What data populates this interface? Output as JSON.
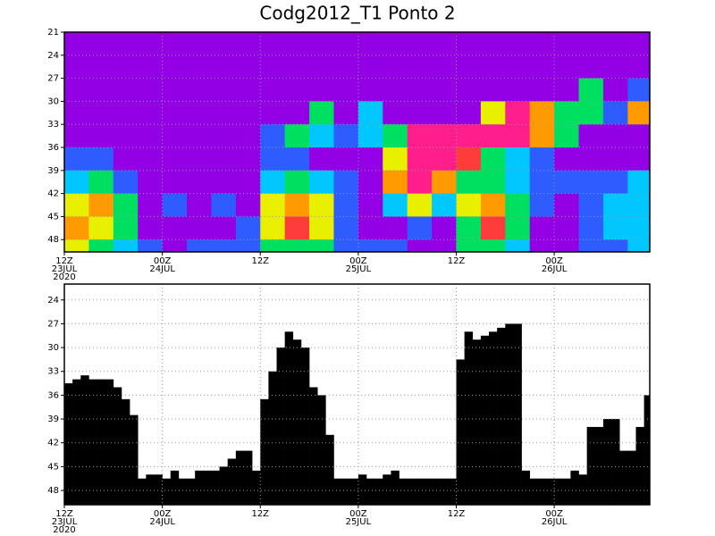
{
  "chart_data": [
    {
      "type": "heatmap",
      "title": "Codg2012_T1 Ponto 2",
      "colors": [
        "#9400e6",
        "#2e5cff",
        "#00c8ff",
        "#00e060",
        "#e8f000",
        "#ff9a00",
        "#ff3c3c",
        "#ff1e8c"
      ],
      "x": [
        0,
        3,
        6,
        9,
        12,
        15,
        18,
        21,
        24,
        27,
        30,
        33,
        36,
        39,
        42,
        45,
        48,
        51,
        54,
        57,
        60,
        63,
        66,
        69
      ],
      "y": [
        21,
        24,
        27,
        30,
        33,
        36,
        39,
        42,
        45,
        48
      ],
      "z": [
        [
          0,
          0,
          0,
          0,
          0,
          0,
          0,
          0,
          0,
          0,
          0,
          0,
          0,
          0,
          0,
          0,
          0,
          0,
          0,
          0,
          0,
          0,
          0,
          0
        ],
        [
          0,
          0,
          0,
          0,
          0,
          0,
          0,
          0,
          0,
          0,
          0,
          0,
          0,
          0,
          0,
          0,
          0,
          0,
          0,
          0,
          0,
          0,
          0,
          0
        ],
        [
          0,
          0,
          0,
          0,
          0,
          0,
          0,
          0,
          0,
          0,
          0,
          0,
          0,
          0,
          0,
          0,
          0,
          0,
          0,
          0,
          0,
          3,
          0,
          1
        ],
        [
          0,
          0,
          0,
          0,
          0,
          0,
          0,
          0,
          0,
          0,
          3,
          0,
          2,
          0,
          0,
          0,
          0,
          4,
          7,
          5,
          3,
          3,
          1,
          5
        ],
        [
          0,
          0,
          0,
          0,
          0,
          0,
          0,
          0,
          1,
          3,
          2,
          1,
          2,
          3,
          7,
          7,
          7,
          7,
          7,
          5,
          3,
          0,
          0,
          0
        ],
        [
          1,
          1,
          0,
          0,
          0,
          0,
          0,
          0,
          1,
          1,
          0,
          0,
          0,
          4,
          7,
          7,
          6,
          3,
          2,
          1,
          0,
          0,
          0,
          0
        ],
        [
          2,
          3,
          1,
          0,
          0,
          0,
          0,
          0,
          2,
          3,
          2,
          1,
          0,
          5,
          7,
          5,
          3,
          3,
          2,
          1,
          1,
          1,
          1,
          2
        ],
        [
          4,
          5,
          3,
          0,
          1,
          0,
          1,
          0,
          4,
          5,
          4,
          1,
          0,
          2,
          4,
          2,
          4,
          5,
          3,
          1,
          0,
          1,
          2,
          2
        ],
        [
          5,
          4,
          3,
          0,
          0,
          0,
          0,
          1,
          4,
          6,
          4,
          1,
          0,
          0,
          1,
          0,
          3,
          6,
          3,
          0,
          0,
          1,
          2,
          2
        ],
        [
          4,
          3,
          2,
          1,
          0,
          1,
          1,
          1,
          3,
          3,
          3,
          1,
          1,
          1,
          0,
          0,
          3,
          3,
          2,
          0,
          0,
          1,
          1,
          2
        ]
      ],
      "xlim": [
        0,
        71.7
      ],
      "ylim": [
        21,
        49.6
      ],
      "yticks": [
        21,
        24,
        27,
        30,
        33,
        36,
        39,
        42,
        45,
        48
      ],
      "xticks": [
        {
          "value": 0,
          "label": "12Z",
          "date": "23JUL"
        },
        {
          "value": 12,
          "label": "00Z",
          "date": "24JUL"
        },
        {
          "value": 24,
          "label": "12Z"
        },
        {
          "value": 36,
          "label": "00Z",
          "date": "25JUL"
        },
        {
          "value": 48,
          "label": "12Z"
        },
        {
          "value": 60,
          "label": "00Z",
          "date": "26JUL"
        }
      ],
      "year": "2020",
      "grid": true
    },
    {
      "type": "bar",
      "color": "#000000",
      "x": [
        0,
        1,
        2,
        3,
        4,
        5,
        6,
        7,
        8,
        9,
        10,
        11,
        12,
        13,
        14,
        15,
        16,
        17,
        18,
        19,
        20,
        21,
        22,
        23,
        24,
        25,
        26,
        27,
        28,
        29,
        30,
        31,
        32,
        33,
        34,
        35,
        36,
        37,
        38,
        39,
        40,
        41,
        42,
        43,
        44,
        45,
        46,
        47,
        48,
        49,
        50,
        51,
        52,
        53,
        54,
        55,
        56,
        57,
        58,
        59,
        60,
        61,
        62,
        63,
        64,
        65,
        66,
        67,
        68,
        69,
        70,
        71
      ],
      "values": [
        34.5,
        34,
        33.5,
        34,
        34,
        34,
        35,
        36.5,
        38.5,
        46.5,
        46,
        46,
        46.5,
        45.5,
        46.5,
        46.5,
        45.5,
        45.5,
        45.5,
        45,
        44,
        43,
        43,
        45.5,
        36.5,
        33,
        30,
        28,
        29,
        30,
        35,
        36,
        41,
        46.5,
        46.5,
        46.5,
        46,
        46.5,
        46.5,
        46,
        45.5,
        46.5,
        46.5,
        46.5,
        46.5,
        46.5,
        46.5,
        46.5,
        31.5,
        28,
        29,
        28.5,
        28,
        27.5,
        27,
        27,
        45.5,
        46.5,
        46.5,
        46.5,
        46.5,
        46.5,
        45.5,
        46,
        40,
        40,
        39,
        39,
        43,
        43,
        40,
        36
      ],
      "xlim": [
        0,
        71.7
      ],
      "ylim": [
        22,
        49.8
      ],
      "yticks": [
        24,
        27,
        30,
        33,
        36,
        39,
        42,
        45,
        48
      ],
      "xticks": [
        {
          "value": 0,
          "label": "12Z",
          "date": "23JUL"
        },
        {
          "value": 12,
          "label": "00Z",
          "date": "24JUL"
        },
        {
          "value": 24,
          "label": "12Z"
        },
        {
          "value": 36,
          "label": "00Z",
          "date": "25JUL"
        },
        {
          "value": 48,
          "label": "12Z"
        },
        {
          "value": 60,
          "label": "00Z",
          "date": "26JUL"
        }
      ],
      "year": "2020",
      "grid": true
    }
  ]
}
